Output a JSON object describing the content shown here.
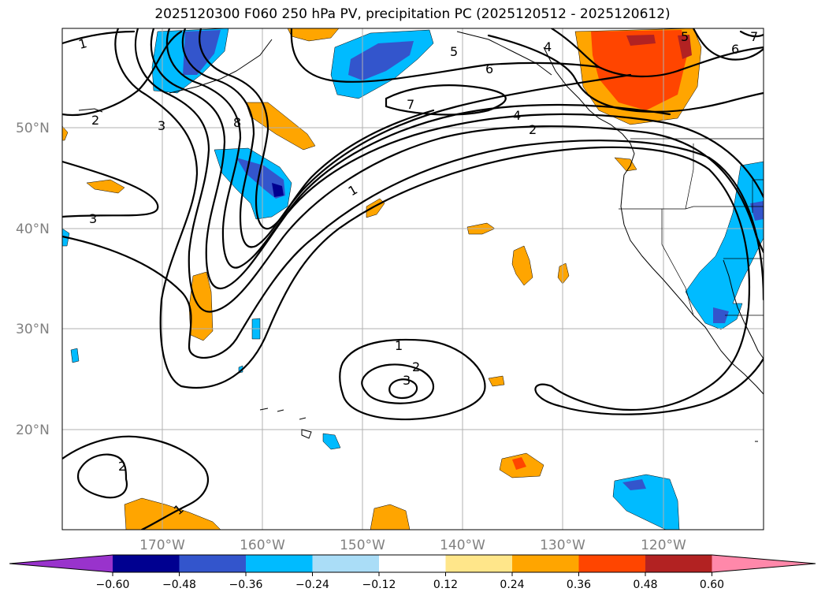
{
  "title": "2025120300 F060 250 hPa PV, precipitation PC (2025120512 - 2025120612)",
  "lat_labels": [
    "50°N",
    "40°N",
    "30°N",
    "20°N"
  ],
  "lon_labels": [
    "170°W",
    "160°W",
    "150°W",
    "140°W",
    "130°W",
    "120°W"
  ],
  "contour_labels": [
    "1",
    "2",
    "3",
    "8",
    "5",
    "6",
    "4",
    "7",
    "4",
    "2",
    "1",
    "1",
    "2",
    "3",
    "3",
    "2",
    "1",
    "6",
    "5",
    "7"
  ],
  "colorbar": {
    "ticks": [
      "−0.60",
      "−0.48",
      "−0.36",
      "−0.24",
      "−0.12",
      "0.12",
      "0.24",
      "0.36",
      "0.48",
      "0.60"
    ],
    "colors": [
      "#9933cc",
      "#000090",
      "#3355cc",
      "#00bbff",
      "#aaddf7",
      "#ffffff",
      "#ffe68a",
      "#ffa500",
      "#ff4500",
      "#b22222",
      "#ff88aa"
    ]
  },
  "shading_colors": {
    "neg_light": "#00bbff",
    "neg_mid": "#3355cc",
    "neg_dark": "#000090",
    "pos_light": "#ffa500",
    "pos_mid": "#ff4500",
    "pos_dark": "#b22222"
  }
}
